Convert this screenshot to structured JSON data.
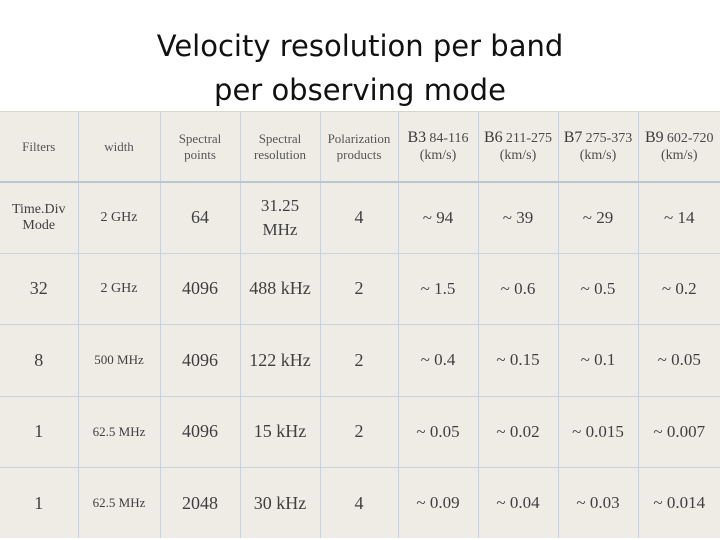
{
  "title": {
    "line1": "Velocity resolution per band",
    "line2": "per observing mode"
  },
  "table": {
    "headers": {
      "filters": "Filters",
      "width": "width",
      "spectral_points": [
        "Spectral",
        "points"
      ],
      "spectral_resolution": [
        "Spectral",
        "resolution"
      ],
      "polarization_products": [
        "Polarization",
        "products"
      ],
      "b3": {
        "name": "B3",
        "range": "84-116",
        "unit": "(km/s)"
      },
      "b6": {
        "name": "B6",
        "range": "211-275",
        "unit": "(km/s)"
      },
      "b7": {
        "name": "B7",
        "range": "275-373",
        "unit": "(km/s)"
      },
      "b9": {
        "name": "B9",
        "range": "602-720",
        "unit": "(km/s)"
      }
    },
    "rows": [
      {
        "mode_line1": "Time.Div",
        "mode_line2": "Mode",
        "width": "2 GHz",
        "points": "64",
        "res_line1": "31.25",
        "res_line2": "MHz",
        "pol": "4",
        "b3": "~ 94",
        "b6": "~ 39",
        "b7": "~ 29",
        "b9": "~ 14"
      },
      {
        "mode": "32",
        "width": "2 GHz",
        "points": "4096",
        "resolution": "488 kHz",
        "pol": "2",
        "b3": "~ 1.5",
        "b6": "~ 0.6",
        "b7": "~ 0.5",
        "b9": "~ 0.2"
      },
      {
        "mode": "8",
        "width": "500 MHz",
        "points": "4096",
        "resolution": "122 kHz",
        "pol": "2",
        "b3": "~ 0.4",
        "b6": "~ 0.15",
        "b7": "~ 0.1",
        "b9": "~ 0.05"
      },
      {
        "mode": "1",
        "width": "62.5 MHz",
        "points": "4096",
        "resolution": "15 kHz",
        "pol": "2",
        "b3": "~ 0.05",
        "b6": "~ 0.02",
        "b7": "~ 0.015",
        "b9": "~ 0.007"
      },
      {
        "mode": "1",
        "width": "62.5 MHz",
        "points": "2048",
        "resolution": "30 kHz",
        "pol": "4",
        "b3": "~ 0.09",
        "b6": "~ 0.04",
        "b7": "~ 0.03",
        "b9": "~ 0.014"
      }
    ]
  }
}
